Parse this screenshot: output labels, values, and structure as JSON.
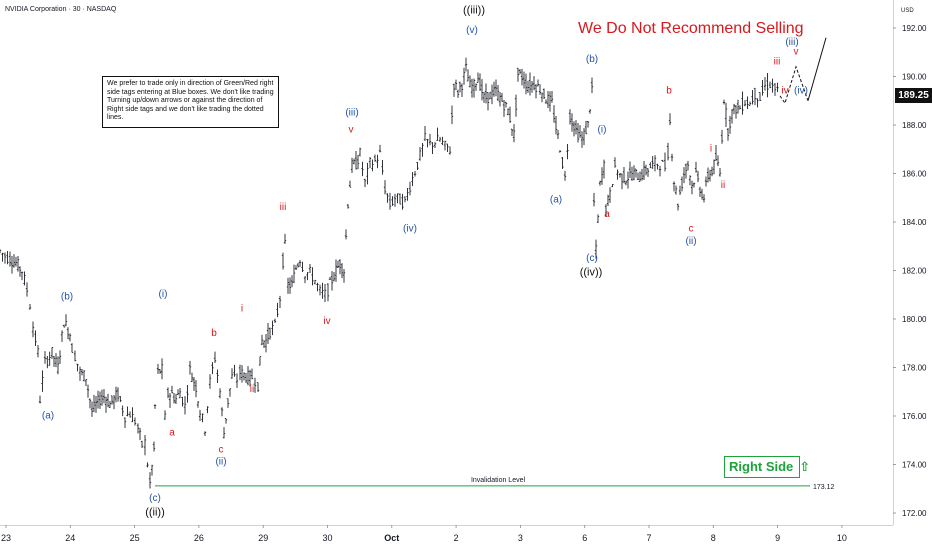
{
  "header": {
    "symbol": "NVIDIA Corporation · 30 · NASDAQ",
    "currency": "USD"
  },
  "note": {
    "text": "We prefer to trade only in direction of Green/Red right side tags entering at Blue boxes. We don't like trading Turning up/down arrows or against the direction of Right side tags and we don't like trading the dotted lines."
  },
  "warning": {
    "text": "We Do Not Recommend Selling"
  },
  "right_side_tag": {
    "label": "Right Side",
    "arrow": "⇧",
    "color": "#1fa23b"
  },
  "last_price": {
    "value": "189.25"
  },
  "invalidation": {
    "label": "Invalidation Level",
    "value": "173.12"
  },
  "colors": {
    "blue": "#2453a6",
    "red": "#d8191e",
    "black": "#111111",
    "green": "#1fa23b"
  },
  "chart_data": {
    "type": "line",
    "title": "",
    "xlabel": "",
    "ylabel": "",
    "ylim": [
      171.2,
      192.9
    ],
    "y_ticks": [
      "192.00",
      "190.00",
      "188.00",
      "186.00",
      "184.00",
      "182.00",
      "180.00",
      "178.00",
      "176.00",
      "174.00",
      "172.00"
    ],
    "x_ticks": [
      "23",
      "24",
      "25",
      "26",
      "29",
      "30",
      "Oct",
      "2",
      "3",
      "6",
      "7",
      "8",
      "9",
      "10"
    ],
    "series": [
      {
        "x": [
          0,
          5,
          10,
          16,
          22,
          27,
          30,
          33,
          38,
          40,
          45,
          52,
          58,
          64,
          70,
          72,
          75,
          80,
          86,
          92,
          100,
          104,
          110,
          118,
          125,
          130,
          135,
          138,
          142,
          145,
          150,
          154,
          155,
          158,
          162,
          165,
          168,
          172,
          176,
          180,
          185,
          190,
          196,
          200,
          205,
          210,
          215,
          220,
          224,
          228,
          232,
          237,
          240,
          244,
          248,
          252,
          255,
          258,
          262,
          266,
          270,
          275,
          280,
          283,
          285,
          288,
          292,
          296,
          300,
          305,
          310,
          315,
          320,
          325,
          328,
          332,
          336,
          340,
          344,
          348,
          352,
          356,
          360,
          365,
          370,
          375,
          380,
          385,
          390,
          395,
          400,
          405,
          410,
          415,
          420,
          425,
          430,
          435,
          440,
          445,
          450,
          454,
          458,
          462,
          466,
          470,
          474,
          478,
          484,
          490,
          496,
          502,
          508,
          514,
          518,
          522,
          528,
          534,
          540,
          546,
          552,
          556,
          560,
          565,
          570,
          576,
          582,
          588,
          592,
          594,
          596,
          600,
          604,
          606,
          610,
          615,
          620,
          626,
          632,
          640,
          648,
          655,
          660,
          665,
          668,
          670,
          674,
          678,
          684,
          688,
          692,
          696,
          700,
          704,
          708,
          712,
          716,
          720,
          724,
          728,
          732,
          736,
          740,
          745,
          750,
          755,
          760,
          765,
          770,
          775,
          780
        ],
        "y": [
          182.8,
          182.6,
          182.5,
          182.3,
          182.0,
          181.2,
          180.6,
          179.7,
          178.6,
          176.7,
          178.2,
          178.6,
          178.0,
          179.9,
          179.4,
          178.8,
          178.5,
          177.8,
          177.6,
          176.2,
          176.7,
          176.8,
          176.5,
          176.9,
          176.0,
          176.1,
          175.8,
          175.5,
          174.8,
          174.9,
          173.2,
          174.6,
          176.4,
          177.8,
          177.9,
          175.9,
          176.9,
          176.9,
          176.7,
          177.0,
          176.4,
          177.9,
          177.2,
          176.2,
          175.5,
          177.4,
          178.4,
          177.0,
          175.3,
          176.6,
          177.6,
          177.5,
          177.8,
          177.7,
          177.6,
          177.6,
          177.5,
          177.3,
          179.1,
          179.1,
          179.5,
          179.7,
          180.9,
          182.4,
          183.0,
          181.4,
          181.4,
          182.1,
          182.5,
          181.9,
          181.9,
          181.6,
          181.1,
          181.0,
          181.2,
          181.6,
          182.0,
          182.3,
          182.0,
          184.8,
          186.3,
          186.4,
          186.8,
          185.6,
          186.4,
          186.5,
          186.8,
          185.4,
          184.7,
          185.0,
          184.9,
          184.8,
          185.5,
          186.1,
          186.7,
          187.4,
          187.2,
          187.3,
          187.4,
          187.1,
          187.0,
          189.7,
          189.4,
          189.7,
          190.3,
          189.6,
          189.6,
          190.0,
          189.1,
          189.2,
          189.4,
          189.0,
          188.6,
          187.6,
          190.1,
          190.0,
          189.6,
          189.7,
          189.5,
          189.1,
          188.9,
          187.9,
          187.1,
          185.8,
          188.4,
          187.8,
          187.4,
          188.0,
          189.5,
          184.8,
          182.8,
          185.5,
          186.3,
          184.6,
          185.1,
          186.3,
          185.9,
          185.8,
          186.0,
          185.9,
          186.2,
          186.4,
          186.4,
          186.3,
          186.9,
          188.1,
          185.7,
          184.8,
          186.0,
          186.4,
          185.5,
          186.0,
          185.4,
          185.0,
          185.9,
          186.1,
          186.6,
          186.0,
          189.1,
          187.8,
          188.5,
          188.7,
          188.7,
          189.0,
          188.9,
          189.3,
          189.1,
          189.6,
          189.7,
          189.5,
          189.2
        ]
      }
    ],
    "projection": {
      "x": [
        780,
        785,
        796,
        808
      ],
      "y": [
        189.2,
        188.9,
        190.4,
        189.0
      ],
      "breakout": {
        "x": [
          808,
          826
        ],
        "y": [
          189.0,
          191.6
        ]
      }
    },
    "invalidation_line": {
      "y": 173.12,
      "x_range": [
        155,
        810
      ],
      "color": "#1fa23b"
    },
    "wave_labels": [
      {
        "text": "(a)",
        "x": 48,
        "y": 175.9,
        "color": "blue"
      },
      {
        "text": "(b)",
        "x": 67,
        "y": 180.8,
        "color": "blue"
      },
      {
        "text": "(c)",
        "x": 155,
        "y": 172.5,
        "color": "blue"
      },
      {
        "text": "((ii))",
        "x": 155,
        "y": 171.9,
        "color": "black"
      },
      {
        "text": "(i)",
        "x": 163,
        "y": 180.9,
        "color": "blue"
      },
      {
        "text": "a",
        "x": 172,
        "y": 175.2,
        "color": "red"
      },
      {
        "text": "b",
        "x": 214,
        "y": 179.3,
        "color": "red"
      },
      {
        "text": "c",
        "x": 221,
        "y": 174.5,
        "color": "red"
      },
      {
        "text": "(ii)",
        "x": 221,
        "y": 174.0,
        "color": "blue"
      },
      {
        "text": "i",
        "x": 242,
        "y": 180.3,
        "color": "red"
      },
      {
        "text": "ii",
        "x": 252,
        "y": 177.0,
        "color": "red"
      },
      {
        "text": "iii",
        "x": 283,
        "y": 184.5,
        "color": "red"
      },
      {
        "text": "iv",
        "x": 327,
        "y": 179.8,
        "color": "red"
      },
      {
        "text": "(iii)",
        "x": 352,
        "y": 188.4,
        "color": "blue"
      },
      {
        "text": "v",
        "x": 351,
        "y": 187.7,
        "color": "red"
      },
      {
        "text": "(iv)",
        "x": 410,
        "y": 183.6,
        "color": "blue"
      },
      {
        "text": "((iii))",
        "x": 474,
        "y": 192.6,
        "color": "black"
      },
      {
        "text": "(v)",
        "x": 472,
        "y": 191.8,
        "color": "blue"
      },
      {
        "text": "(a)",
        "x": 556,
        "y": 184.8,
        "color": "blue"
      },
      {
        "text": "(b)",
        "x": 592,
        "y": 190.6,
        "color": "blue"
      },
      {
        "text": "(c)",
        "x": 592,
        "y": 182.4,
        "color": "blue"
      },
      {
        "text": "((iv))",
        "x": 591,
        "y": 181.8,
        "color": "black"
      },
      {
        "text": "(i)",
        "x": 602,
        "y": 187.7,
        "color": "blue"
      },
      {
        "text": "a",
        "x": 607,
        "y": 184.2,
        "color": "red"
      },
      {
        "text": "b",
        "x": 669,
        "y": 189.3,
        "color": "red"
      },
      {
        "text": "c",
        "x": 691,
        "y": 183.6,
        "color": "red"
      },
      {
        "text": "(ii)",
        "x": 691,
        "y": 183.1,
        "color": "blue"
      },
      {
        "text": "i",
        "x": 711,
        "y": 186.9,
        "color": "red"
      },
      {
        "text": "ii",
        "x": 723,
        "y": 185.4,
        "color": "red"
      },
      {
        "text": "iii",
        "x": 777,
        "y": 190.5,
        "color": "red"
      },
      {
        "text": "iv",
        "x": 785,
        "y": 189.3,
        "color": "red"
      },
      {
        "text": "(iii)",
        "x": 792,
        "y": 191.3,
        "color": "blue"
      },
      {
        "text": "v",
        "x": 796,
        "y": 190.9,
        "color": "red"
      },
      {
        "text": "(iv)",
        "x": 801,
        "y": 189.3,
        "color": "blue"
      }
    ]
  }
}
